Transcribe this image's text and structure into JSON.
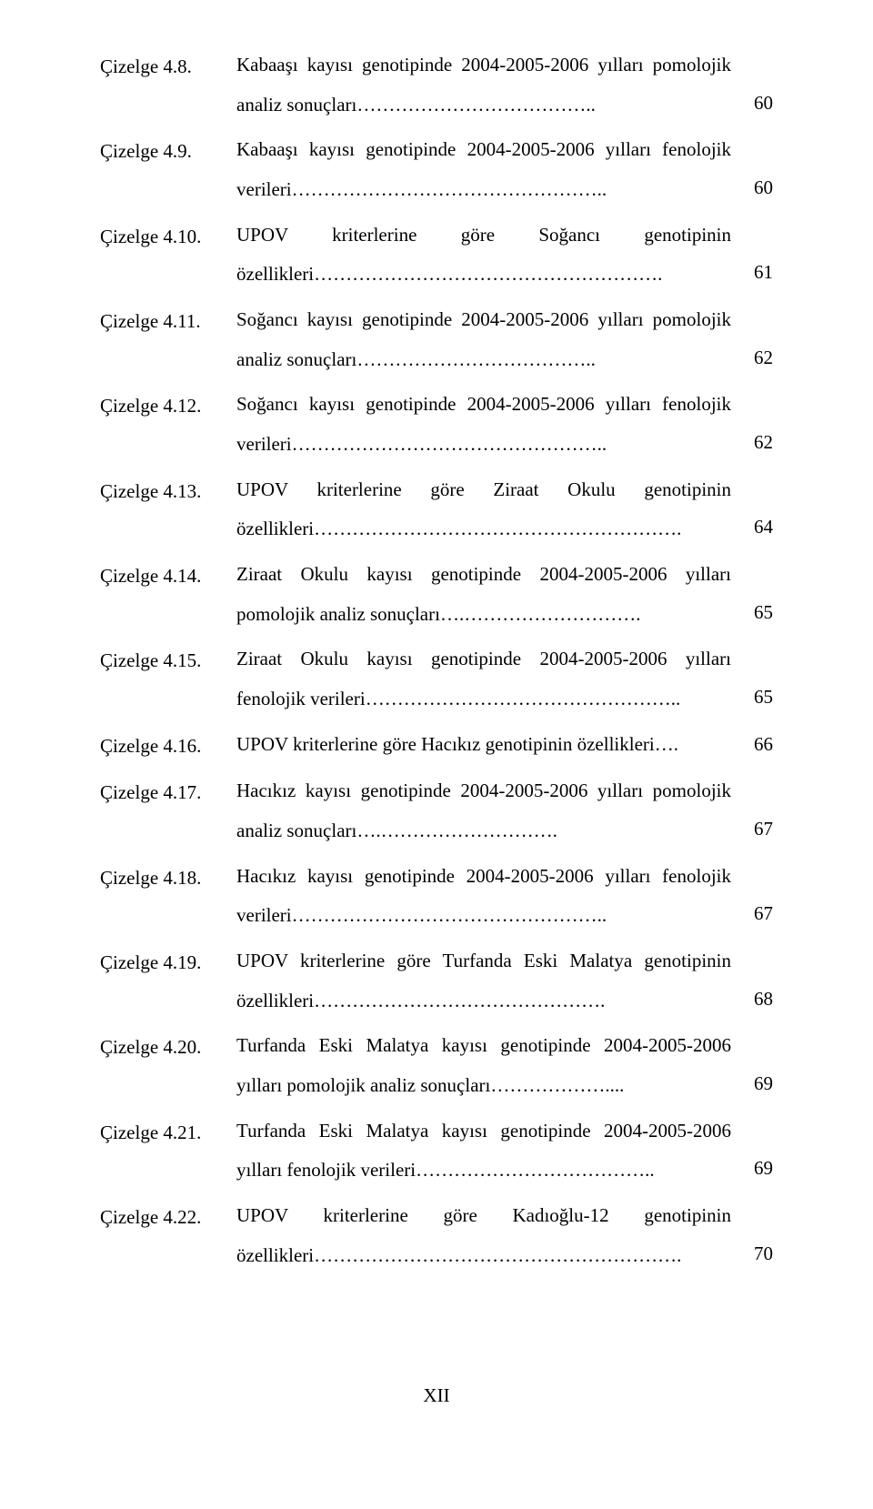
{
  "entries": [
    {
      "label": "Çizelge 4.8.",
      "desc": "Kabaaşı kayısı genotipinde 2004-2005-2006 yılları pomolojik analiz sonuçları………………………………..",
      "page": "60"
    },
    {
      "label": "Çizelge 4.9.",
      "desc": "Kabaaşı kayısı genotipinde 2004-2005-2006 yılları fenolojik verileri…………………………………………..",
      "page": "60"
    },
    {
      "label": "Çizelge 4.10.",
      "desc": "UPOV kriterlerine göre Soğancı genotipinin özellikleri……………………………………………….",
      "page": "61"
    },
    {
      "label": "Çizelge 4.11.",
      "desc": "Soğancı kayısı genotipinde 2004-2005-2006 yılları pomolojik analiz sonuçları………………………………..",
      "page": "62"
    },
    {
      "label": "Çizelge 4.12.",
      "desc": "Soğancı kayısı genotipinde 2004-2005-2006 yılları fenolojik verileri…………………………………………..",
      "page": "62"
    },
    {
      "label": "Çizelge 4.13.",
      "desc": "UPOV kriterlerine göre Ziraat Okulu genotipinin özellikleri………………………………………………….",
      "page": "64"
    },
    {
      "label": "Çizelge 4.14.",
      "desc": "Ziraat Okulu kayısı genotipinde 2004-2005-2006 yılları pomolojik analiz sonuçları….……………………….",
      "page": "65"
    },
    {
      "label": "Çizelge 4.15.",
      "desc": "Ziraat Okulu kayısı genotipinde 2004-2005-2006 yılları fenolojik verileri…………………………………………..",
      "page": "65"
    },
    {
      "label": "Çizelge 4.16.",
      "desc": "UPOV kriterlerine göre Hacıkız genotipinin özellikleri….",
      "page": "66"
    },
    {
      "label": "Çizelge 4.17.",
      "desc": "Hacıkız kayısı genotipinde 2004-2005-2006 yılları pomolojik analiz sonuçları….……………………….",
      "page": "67"
    },
    {
      "label": "Çizelge 4.18.",
      "desc": "Hacıkız kayısı genotipinde 2004-2005-2006 yılları fenolojik verileri…………………………………………..",
      "page": "67"
    },
    {
      "label": "Çizelge 4.19.",
      "desc": "UPOV kriterlerine göre Turfanda Eski Malatya genotipinin özellikleri……………………………………….",
      "page": "68"
    },
    {
      "label": "Çizelge 4.20.",
      "desc": "Turfanda Eski Malatya kayısı genotipinde 2004-2005-2006 yılları pomolojik analiz sonuçları………………....",
      "page": "69"
    },
    {
      "label": "Çizelge 4.21.",
      "desc": "Turfanda Eski Malatya kayısı genotipinde 2004-2005-2006 yılları fenolojik verileri………………………………..",
      "page": "69"
    },
    {
      "label": "Çizelge 4.22.",
      "desc": "UPOV kriterlerine göre Kadıoğlu-12 genotipinin özellikleri………………………………………………….",
      "page": "70"
    }
  ],
  "footer": "XII"
}
